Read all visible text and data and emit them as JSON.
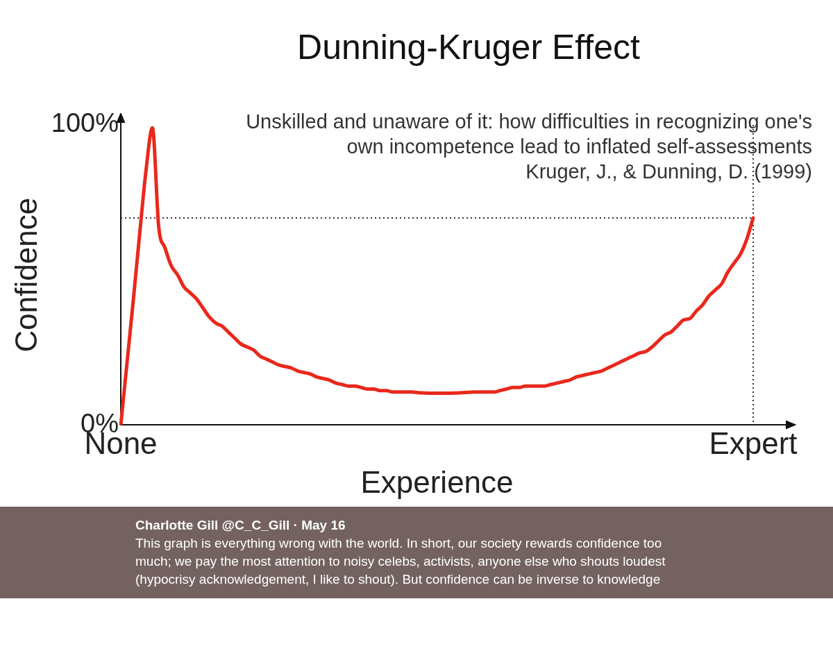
{
  "chart_data": {
    "type": "line",
    "title": "Dunning-Kruger Effect",
    "subtitle": "Unskilled and unaware of it: how difficulties in recognizing one's own incompetence lead to inflated self-assessments",
    "xlabel": "Experience",
    "ylabel": "Confidence",
    "categories": [
      "None",
      null,
      null,
      null,
      null,
      null,
      null,
      null,
      null,
      null,
      null,
      null,
      null,
      null,
      null,
      null,
      null,
      null,
      null,
      null,
      null,
      null,
      null,
      null,
      null,
      null,
      null,
      null,
      null,
      null,
      null,
      null,
      null,
      null,
      null,
      null,
      null,
      null,
      null,
      null,
      null,
      null,
      null,
      null,
      null,
      null,
      null,
      null,
      null,
      null,
      null,
      null,
      null,
      null,
      null,
      null,
      null,
      null,
      null,
      null,
      null,
      null,
      null,
      null,
      null,
      null,
      null,
      null,
      null,
      null,
      null,
      null,
      null,
      null,
      null,
      null,
      null,
      null,
      null,
      null,
      null,
      null,
      null,
      null,
      null,
      null,
      null,
      null,
      null,
      null,
      null,
      null,
      null,
      null,
      null,
      null,
      null,
      null,
      null,
      null,
      "Expert"
    ],
    "series": [
      {
        "color": "#e8291c",
        "values": [
          0,
          21,
          42,
          64,
          85,
          99,
          66,
          59,
          53,
          50,
          46,
          44,
          42,
          39,
          36,
          34,
          33,
          31,
          29,
          27,
          26,
          25,
          23,
          22,
          21,
          20,
          19.5,
          19,
          18,
          17.5,
          17,
          16,
          15.5,
          15,
          14,
          13.5,
          13,
          13,
          12.5,
          12,
          12,
          11.5,
          11.5,
          11,
          11,
          11,
          11,
          10.8,
          10.7,
          10.6,
          10.6,
          10.6,
          10.6,
          10.7,
          10.8,
          10.9,
          11,
          11,
          11,
          11,
          11.5,
          12,
          12.5,
          12.5,
          13,
          13,
          13,
          13,
          13.5,
          14,
          14.5,
          15,
          16,
          16.5,
          17,
          17.5,
          18,
          19,
          20,
          21,
          22,
          23,
          24,
          24.5,
          26,
          28,
          30,
          31,
          33,
          35,
          35.5,
          38,
          40,
          43,
          45,
          47,
          51,
          54,
          57,
          62,
          69
        ]
      }
    ],
    "ylim": [
      0,
      100
    ],
    "yticks": [
      {
        "value": 0,
        "label": "0%"
      },
      {
        "value": 100,
        "label": "100%"
      }
    ],
    "ref_lines": [
      {
        "axis": "y",
        "value": 69,
        "line_style": "dotted",
        "color": "#333333"
      },
      {
        "axis": "x",
        "value": "Expert",
        "line_style": "dotted",
        "color": "#333333"
      }
    ],
    "annotations": [
      "Kruger, J., & Dunning, D. (1999)",
      "Charlotte Gill @C_C_Gill · May 16",
      "This graph is everything wrong with the world. In short, our society rewards confidence too much; we pay the most attention to noisy celebs, activists, anyone else who shouts loudest (hypocrisy acknowledgement, I like to shout). But confidence can be inverse to knowledge"
    ]
  }
}
